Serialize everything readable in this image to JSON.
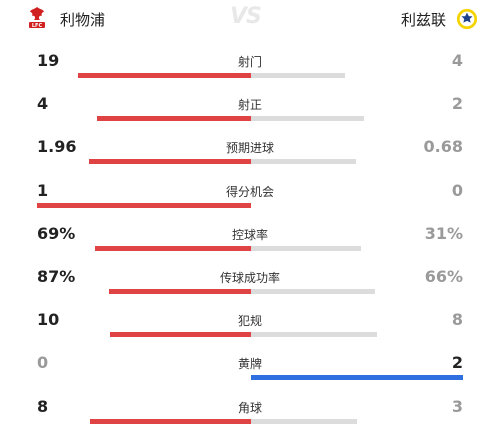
{
  "home": {
    "name": "利物浦",
    "crest": "liverpool-crest"
  },
  "away": {
    "name": "利兹联",
    "crest": "leeds-crest"
  },
  "vs_label": "VS",
  "colors": {
    "home": "#e04343",
    "away_win": "#2f6fe0",
    "neutral": "#dcdcdc"
  },
  "stats": [
    {
      "label": "射门",
      "home": "19",
      "away": "4",
      "home_share": 0.83
    },
    {
      "label": "射正",
      "home": "4",
      "away": "2",
      "home_share": 0.67
    },
    {
      "label": "预期进球",
      "home": "1.96",
      "away": "0.68",
      "home_share": 0.74
    },
    {
      "label": "得分机会",
      "home": "1",
      "away": "0",
      "home_share": 1.0
    },
    {
      "label": "控球率",
      "home": "69%",
      "away": "31%",
      "home_share": 0.69
    },
    {
      "label": "传球成功率",
      "home": "87%",
      "away": "66%",
      "home_share": 0.57
    },
    {
      "label": "犯规",
      "home": "10",
      "away": "8",
      "home_share": 0.56
    },
    {
      "label": "黄牌",
      "home": "0",
      "away": "2",
      "home_share": 0.0
    },
    {
      "label": "角球",
      "home": "8",
      "away": "3",
      "home_share": 0.73
    }
  ]
}
